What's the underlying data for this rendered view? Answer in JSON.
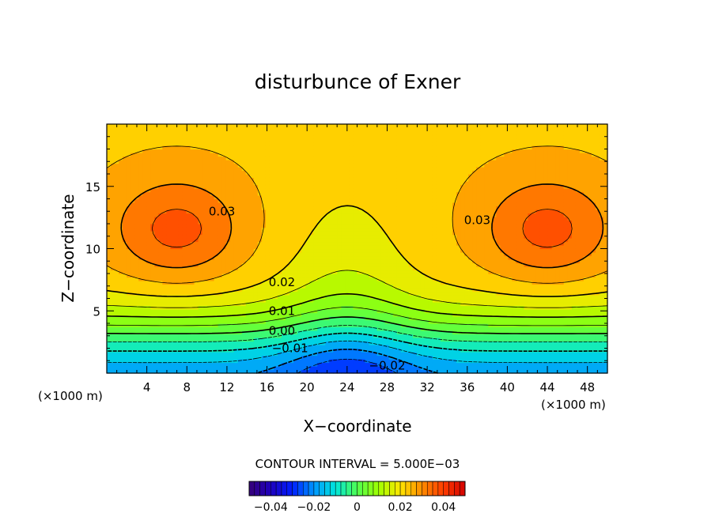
{
  "chart_data": {
    "type": "heatmap",
    "title": "disturbunce of Exner",
    "xlabel": "X−coordinate",
    "ylabel": "Z−coordinate",
    "x_unit": "(×1000 m)",
    "y_unit": "(×1000 m)",
    "xlim": [
      0,
      50
    ],
    "ylim": [
      0,
      20
    ],
    "x_ticks": [
      4,
      8,
      12,
      16,
      20,
      24,
      28,
      32,
      36,
      40,
      44,
      48
    ],
    "y_ticks": [
      5,
      10,
      15
    ],
    "x_tick_labels": [
      "4",
      "8",
      "12",
      "16",
      "20",
      "24",
      "28",
      "32",
      "36",
      "40",
      "44",
      "48"
    ],
    "y_tick_labels": [
      "5",
      "10",
      "15"
    ],
    "contour_interval_text": "CONTOUR INTERVAL = 5.000E−03",
    "contour_interval": 0.005,
    "contour_labels": [
      {
        "text": "0.03",
        "value": 0.03,
        "x": 11.5,
        "z": 13.0
      },
      {
        "text": "0.03",
        "value": 0.03,
        "x": 37.0,
        "z": 12.3
      },
      {
        "text": "0.02",
        "value": 0.02,
        "x": 17.5,
        "z": 7.3
      },
      {
        "text": "0.01",
        "value": 0.01,
        "x": 17.5,
        "z": 5.0
      },
      {
        "text": "0.00",
        "value": 0.0,
        "x": 17.5,
        "z": 3.4
      },
      {
        "text": "−0.01",
        "value": -0.01,
        "x": 18.3,
        "z": 2.0
      },
      {
        "text": "−0.02",
        "value": -0.02,
        "x": 28.0,
        "z": 0.6
      }
    ],
    "colorbar": {
      "min": -0.05,
      "max": 0.05,
      "tick_values": [
        -0.04,
        -0.02,
        0,
        0.02,
        0.04
      ],
      "tick_labels": [
        "−0.04",
        "−0.02",
        "0",
        "0.02",
        "0.04"
      ]
    },
    "field_range": [
      -0.025,
      0.037
    ],
    "max_regions": [
      {
        "x": 7,
        "z": 11.5,
        "value": 0.037
      },
      {
        "x": 44,
        "z": 11.5,
        "value": 0.037
      }
    ],
    "min_region": {
      "x": 24,
      "z": 0,
      "value": -0.025
    },
    "saddle": {
      "x": 24,
      "z": 12,
      "value": 0.025
    }
  }
}
